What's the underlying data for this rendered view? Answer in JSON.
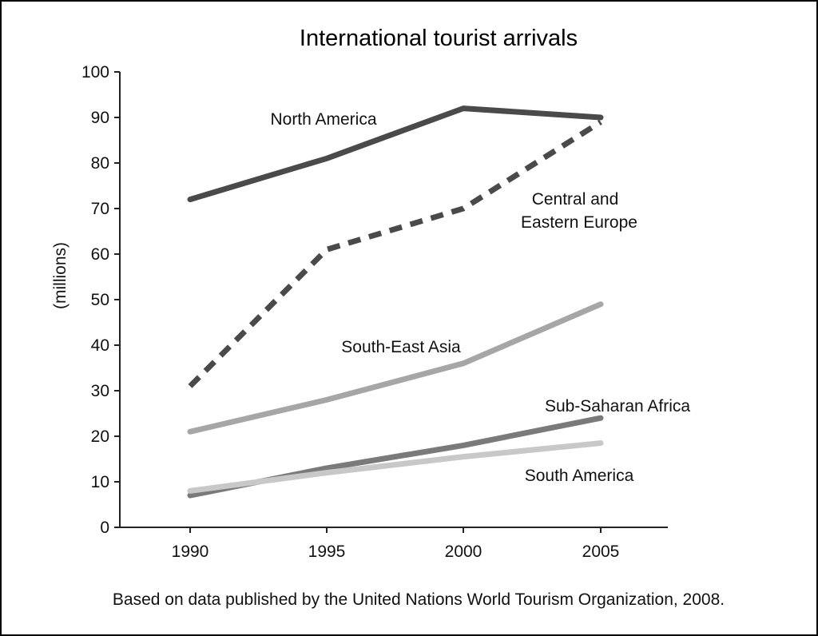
{
  "chart_data": {
    "type": "line",
    "title": "International tourist arrivals",
    "ylabel": "(millions)",
    "xlabel": "",
    "x": [
      "1990",
      "1995",
      "2000",
      "2005"
    ],
    "ylim": [
      0,
      100
    ],
    "yticks": [
      "0",
      "10",
      "20",
      "30",
      "40",
      "50",
      "60",
      "70",
      "80",
      "90",
      "100"
    ],
    "grid": false,
    "legend": "inline labels",
    "series": [
      {
        "name": "North America",
        "values": [
          72,
          81,
          92,
          90
        ],
        "color": "#4a4a4a",
        "dashed": false
      },
      {
        "name": "Central and Eastern Europe",
        "label_lines": [
          "Central and",
          "Eastern Europe"
        ],
        "values": [
          31,
          61,
          70,
          89
        ],
        "color": "#4a4a4a",
        "dashed": true
      },
      {
        "name": "South-East Asia",
        "values": [
          21,
          28,
          36,
          49
        ],
        "color": "#a6a6a6",
        "dashed": false
      },
      {
        "name": "Sub-Saharan Africa",
        "values": [
          7,
          13,
          18,
          24
        ],
        "color": "#7a7a7a",
        "dashed": false
      },
      {
        "name": "South America",
        "values": [
          8,
          12,
          15.5,
          18.5
        ],
        "color": "#c8c8c8",
        "dashed": false
      }
    ],
    "source": "Based on data published by the United Nations World Tourism Organization, 2008."
  }
}
